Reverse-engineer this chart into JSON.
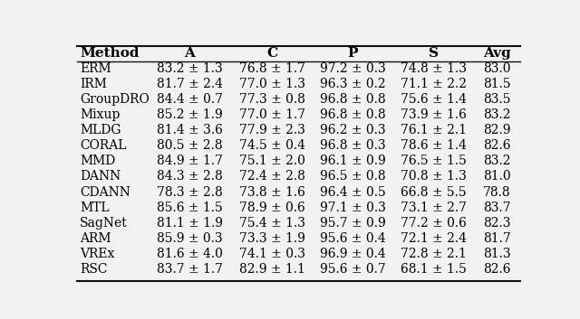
{
  "columns": [
    "Method",
    "A",
    "C",
    "P",
    "S",
    "Avg"
  ],
  "rows": [
    [
      "ERM",
      "83.2 ± 1.3",
      "76.8 ± 1.7",
      "97.2 ± 0.3",
      "74.8 ± 1.3",
      "83.0"
    ],
    [
      "IRM",
      "81.7 ± 2.4",
      "77.0 ± 1.3",
      "96.3 ± 0.2",
      "71.1 ± 2.2",
      "81.5"
    ],
    [
      "GroupDRO",
      "84.4 ± 0.7",
      "77.3 ± 0.8",
      "96.8 ± 0.8",
      "75.6 ± 1.4",
      "83.5"
    ],
    [
      "Mixup",
      "85.2 ± 1.9",
      "77.0 ± 1.7",
      "96.8 ± 0.8",
      "73.9 ± 1.6",
      "83.2"
    ],
    [
      "MLDG",
      "81.4 ± 3.6",
      "77.9 ± 2.3",
      "96.2 ± 0.3",
      "76.1 ± 2.1",
      "82.9"
    ],
    [
      "CORAL",
      "80.5 ± 2.8",
      "74.5 ± 0.4",
      "96.8 ± 0.3",
      "78.6 ± 1.4",
      "82.6"
    ],
    [
      "MMD",
      "84.9 ± 1.7",
      "75.1 ± 2.0",
      "96.1 ± 0.9",
      "76.5 ± 1.5",
      "83.2"
    ],
    [
      "DANN",
      "84.3 ± 2.8",
      "72.4 ± 2.8",
      "96.5 ± 0.8",
      "70.8 ± 1.3",
      "81.0"
    ],
    [
      "CDANN",
      "78.3 ± 2.8",
      "73.8 ± 1.6",
      "96.4 ± 0.5",
      "66.8 ± 5.5",
      "78.8"
    ],
    [
      "MTL",
      "85.6 ± 1.5",
      "78.9 ± 0.6",
      "97.1 ± 0.3",
      "73.1 ± 2.7",
      "83.7"
    ],
    [
      "SagNet",
      "81.1 ± 1.9",
      "75.4 ± 1.3",
      "95.7 ± 0.9",
      "77.2 ± 0.6",
      "82.3"
    ],
    [
      "ARM",
      "85.9 ± 0.3",
      "73.3 ± 1.9",
      "95.6 ± 0.4",
      "72.1 ± 2.4",
      "81.7"
    ],
    [
      "VREx",
      "81.6 ± 4.0",
      "74.1 ± 0.3",
      "96.9 ± 0.4",
      "72.8 ± 2.1",
      "81.3"
    ],
    [
      "RSC",
      "83.7 ± 1.7",
      "82.9 ± 1.1",
      "95.6 ± 0.7",
      "68.1 ± 1.5",
      "82.6"
    ]
  ],
  "col_props": [
    0.158,
    0.192,
    0.182,
    0.182,
    0.182,
    0.104
  ],
  "header_fontsize": 11,
  "cell_fontsize": 10,
  "figsize": [
    6.4,
    3.53
  ],
  "dpi": 100,
  "bg_color": "#f2f2f2",
  "line_color": "#111111"
}
